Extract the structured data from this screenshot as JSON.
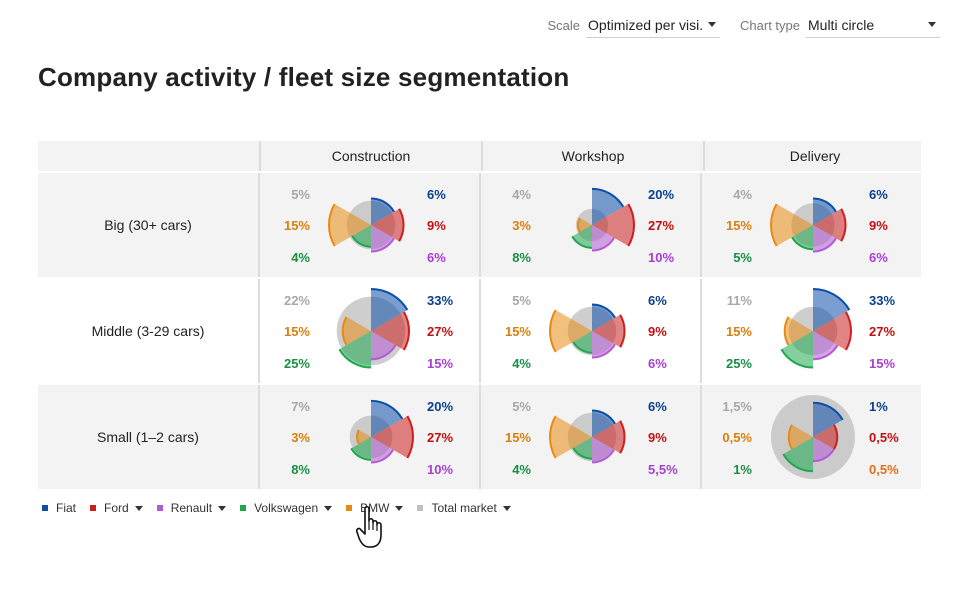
{
  "controls": {
    "scale_label": "Scale",
    "scale_value": "Optimized per visi...",
    "chart_type_label": "Chart type",
    "chart_type_value": "Multi circle"
  },
  "page": {
    "title": "Company activity / fleet size segmentation"
  },
  "legend": {
    "items": [
      {
        "label": "Fiat",
        "color": "#0b4fa8"
      },
      {
        "label": "Ford",
        "color": "#cc1f1f"
      },
      {
        "label": "Renault",
        "color": "#b45ad6"
      },
      {
        "label": "Volkswagen",
        "color": "#1ea84e"
      },
      {
        "label": "BMW",
        "color": "#e88a12"
      },
      {
        "label": "Total market",
        "color": "#c0c0c0"
      }
    ]
  },
  "chart_data": {
    "type": "multi-circle",
    "title": "Company activity / fleet size segmentation",
    "columns": [
      "Construction",
      "Workshop",
      "Delivery"
    ],
    "rows": [
      "Big (30+ cars)",
      "Middle (3-29 cars)",
      "Small (1–2 cars)"
    ],
    "series": [
      "Fiat",
      "Ford",
      "Renault",
      "Volkswagen",
      "BMW",
      "Total market"
    ],
    "series_colors": {
      "Fiat": "#0b4fa8",
      "Ford": "#cc1f1f",
      "Renault": "#b45ad6",
      "Volkswagen": "#1ea84e",
      "BMW": "#e88a12",
      "Total market": "#bdbdbd"
    },
    "scale": "Optimized per visible",
    "cells": [
      [
        {
          "labels": {
            "Total market": "5%",
            "Fiat": "6%",
            "BMW": "15%",
            "Ford": "9%",
            "Volkswagen": "4%",
            "Renault": "6%"
          },
          "values": {
            "Total market": 5,
            "Fiat": 6,
            "BMW": 15,
            "Ford": 9,
            "Volkswagen": 4,
            "Renault": 6
          }
        },
        {
          "labels": {
            "Total market": "4%",
            "Fiat": "20%",
            "BMW": "3%",
            "Ford": "27%",
            "Volkswagen": "8%",
            "Renault": "10%"
          },
          "values": {
            "Total market": 4,
            "Fiat": 20,
            "BMW": 3,
            "Ford": 27,
            "Volkswagen": 8,
            "Renault": 10
          }
        },
        {
          "labels": {
            "Total market": "4%",
            "Fiat": "6%",
            "BMW": "15%",
            "Ford": "9%",
            "Volkswagen": "5%",
            "Renault": "6%"
          },
          "values": {
            "Total market": 4,
            "Fiat": 6,
            "BMW": 15,
            "Ford": 9,
            "Volkswagen": 5,
            "Renault": 6
          }
        }
      ],
      [
        {
          "labels": {
            "Total market": "22%",
            "Fiat": "33%",
            "BMW": "15%",
            "Ford": "27%",
            "Volkswagen": "25%",
            "Renault": "15%"
          },
          "values": {
            "Total market": 22,
            "Fiat": 33,
            "BMW": 15,
            "Ford": 27,
            "Volkswagen": 25,
            "Renault": 15
          }
        },
        {
          "labels": {
            "Total market": "5%",
            "Fiat": "6%",
            "BMW": "15%",
            "Ford": "9%",
            "Volkswagen": "4%",
            "Renault": "6%"
          },
          "values": {
            "Total market": 5,
            "Fiat": 6,
            "BMW": 15,
            "Ford": 9,
            "Volkswagen": 4,
            "Renault": 6
          }
        },
        {
          "labels": {
            "Total market": "11%",
            "Fiat": "33%",
            "BMW": "15%",
            "Ford": "27%",
            "Volkswagen": "25%",
            "Renault": "15%"
          },
          "values": {
            "Total market": 11,
            "Fiat": 33,
            "BMW": 15,
            "Ford": 27,
            "Volkswagen": 25,
            "Renault": 15
          }
        }
      ],
      [
        {
          "labels": {
            "Total market": "7%",
            "Fiat": "20%",
            "BMW": "3%",
            "Ford": "27%",
            "Volkswagen": "8%",
            "Renault": "10%"
          },
          "values": {
            "Total market": 7,
            "Fiat": 20,
            "BMW": 3,
            "Ford": 27,
            "Volkswagen": 8,
            "Renault": 10
          }
        },
        {
          "labels": {
            "Total market": "5%",
            "Fiat": "6%",
            "BMW": "15%",
            "Ford": "9%",
            "Volkswagen": "4%",
            "Renault": "5,5%"
          },
          "values": {
            "Total market": 5,
            "Fiat": 6,
            "BMW": 15,
            "Ford": 9,
            "Volkswagen": 4,
            "Renault": 5.5
          }
        },
        {
          "labels": {
            "Total market": "1,5%",
            "Fiat": "1%",
            "BMW": "0,5%",
            "Ford": "0,5%",
            "Volkswagen": "1%",
            "Renault": "0,5%"
          },
          "values": {
            "Total market": 1.5,
            "Fiat": 1,
            "BMW": 0.5,
            "Ford": 0.5,
            "Volkswagen": 1,
            "Renault": 0.5
          }
        }
      ]
    ],
    "label_colors": {
      "Total market": "#a8a8a8",
      "Fiat": "#0b3f8f",
      "BMW": "#d97f0f",
      "Ford": "#c40f0f",
      "Volkswagen": "#1a8f45",
      "Renault": "#a93fd4"
    },
    "cell_label_overrides": [
      {
        "row": 2,
        "col": 2,
        "series": "Renault",
        "color": "#e0701a"
      }
    ]
  }
}
